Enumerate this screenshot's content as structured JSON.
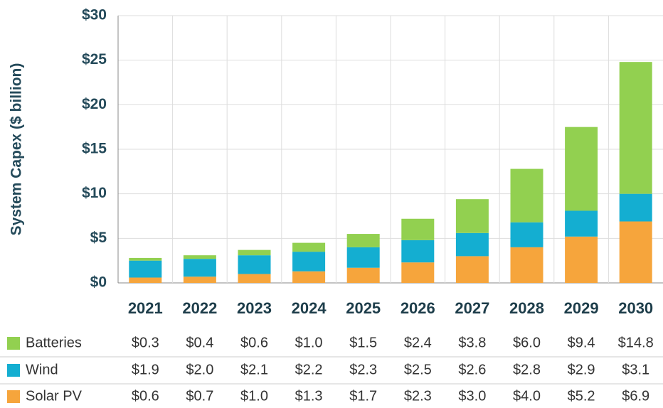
{
  "chart_data": {
    "type": "bar",
    "stacked": true,
    "y_label": "System Capex ($ billion)",
    "categories": [
      "2021",
      "2022",
      "2023",
      "2024",
      "2025",
      "2026",
      "2027",
      "2028",
      "2029",
      "2030"
    ],
    "series": [
      {
        "name": "Batteries",
        "color": "#92d050",
        "values": [
          0.3,
          0.4,
          0.6,
          1.0,
          1.5,
          2.4,
          3.8,
          6.0,
          9.4,
          14.8
        ],
        "value_labels": [
          "$0.3",
          "$0.4",
          "$0.6",
          "$1.0",
          "$1.5",
          "$2.4",
          "$3.8",
          "$6.0",
          "$9.4",
          "$14.8"
        ]
      },
      {
        "name": "Wind",
        "color": "#14aed1",
        "values": [
          1.9,
          2.0,
          2.1,
          2.2,
          2.3,
          2.5,
          2.6,
          2.8,
          2.9,
          3.1
        ],
        "value_labels": [
          "$1.9",
          "$2.0",
          "$2.1",
          "$2.2",
          "$2.3",
          "$2.5",
          "$2.6",
          "$2.8",
          "$2.9",
          "$3.1"
        ]
      },
      {
        "name": "Solar PV",
        "color": "#f6a53c",
        "values": [
          0.6,
          0.7,
          1.0,
          1.3,
          1.7,
          2.3,
          3.0,
          4.0,
          5.2,
          6.9
        ],
        "value_labels": [
          "$0.6",
          "$0.7",
          "$1.0",
          "$1.3",
          "$1.7",
          "$2.3",
          "$3.0",
          "$4.0",
          "$5.2",
          "$6.9"
        ]
      }
    ],
    "ylim": [
      0,
      30
    ],
    "yticks": [
      {
        "value": 0,
        "label": "$0"
      },
      {
        "value": 5,
        "label": "$5"
      },
      {
        "value": 10,
        "label": "$10"
      },
      {
        "value": 15,
        "label": "$15"
      },
      {
        "value": 20,
        "label": "$20"
      },
      {
        "value": 25,
        "label": "$25"
      },
      {
        "value": 30,
        "label": "$30"
      }
    ],
    "grid": true
  }
}
